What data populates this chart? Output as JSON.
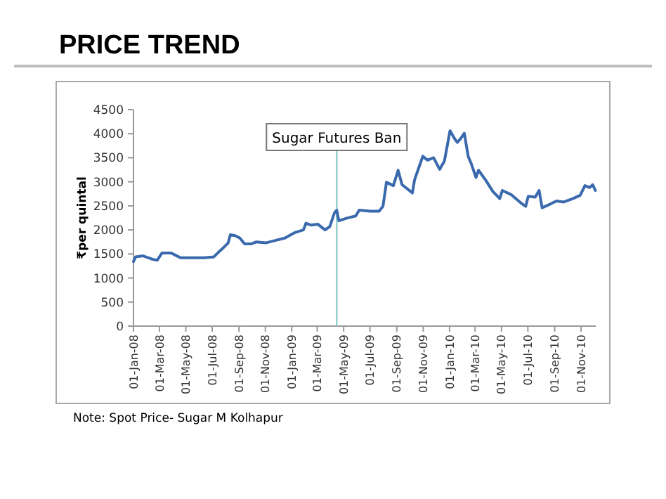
{
  "chart_data": {
    "type": "line",
    "title": "PRICE TREND",
    "ylabel": "₹per quintal",
    "annotations": [
      "Note:  Spot Price- Sugar M Kolhapur"
    ],
    "x": [
      "2008-01-01",
      "2008-01-06",
      "2008-01-23",
      "2008-02-14",
      "2008-02-25",
      "2008-03-07",
      "2008-03-28",
      "2008-04-08",
      "2008-04-19",
      "2008-05-11",
      "2008-06-13",
      "2008-07-05",
      "2008-07-16",
      "2008-07-27",
      "2008-08-07",
      "2008-08-12",
      "2008-08-23",
      "2008-09-03",
      "2008-09-14",
      "2008-09-30",
      "2008-10-11",
      "2008-11-02",
      "2008-11-24",
      "2008-12-16",
      "2009-01-07",
      "2009-01-28",
      "2009-02-03",
      "2009-02-14",
      "2009-03-02",
      "2009-03-19",
      "2009-03-30",
      "2009-04-10",
      "2009-04-15",
      "2009-04-20",
      "2009-05-07",
      "2009-05-29",
      "2009-06-06",
      "2009-07-01",
      "2009-07-22",
      "2009-07-31",
      "2009-08-08",
      "2009-08-24",
      "2009-09-04",
      "2009-09-13",
      "2009-10-07",
      "2009-10-12",
      "2009-10-31",
      "2009-11-11",
      "2009-11-25",
      "2009-12-09",
      "2009-12-20",
      "2010-01-02",
      "2010-01-13",
      "2010-01-19",
      "2010-01-26",
      "2010-02-04",
      "2010-02-13",
      "2010-02-20",
      "2010-03-03",
      "2010-03-09",
      "2010-03-25",
      "2010-04-11",
      "2010-04-27",
      "2010-05-03",
      "2010-05-24",
      "2010-06-15",
      "2010-06-26",
      "2010-07-02",
      "2010-07-18",
      "2010-07-27",
      "2010-08-03",
      "2010-08-20",
      "2010-09-05",
      "2010-09-22",
      "2010-10-13",
      "2010-10-30",
      "2010-11-10",
      "2010-11-21",
      "2010-11-28",
      "2010-12-04"
    ],
    "series": [
      {
        "color": "#3a6aad",
        "values": [
          1340,
          1440,
          1460,
          1390,
          1370,
          1520,
          1520,
          1470,
          1420,
          1420,
          1420,
          1440,
          1540,
          1630,
          1730,
          1900,
          1880,
          1830,
          1710,
          1710,
          1750,
          1730,
          1780,
          1830,
          1940,
          2000,
          2140,
          2100,
          2120,
          2000,
          2070,
          2360,
          2410,
          2190,
          2240,
          2290,
          2410,
          2390,
          2390,
          2490,
          2990,
          2920,
          3240,
          2940,
          2770,
          3040,
          3530,
          3450,
          3500,
          3260,
          3430,
          4060,
          3890,
          3820,
          3890,
          4010,
          3530,
          3380,
          3090,
          3240,
          3040,
          2800,
          2650,
          2820,
          2730,
          2560,
          2490,
          2700,
          2680,
          2820,
          2460,
          2530,
          2600,
          2580,
          2650,
          2720,
          2920,
          2880,
          2940,
          2820
        ]
      }
    ],
    "xlim": [
      "2008-01-01",
      "2010-12-05"
    ],
    "xticks": [
      {
        "value": "2008-01-01",
        "label": "01-Jan-08"
      },
      {
        "value": "2008-03-01",
        "label": "01-Mar-08"
      },
      {
        "value": "2008-05-01",
        "label": "01-May-08"
      },
      {
        "value": "2008-07-01",
        "label": "01-Jul-08"
      },
      {
        "value": "2008-09-01",
        "label": "01-Sep-08"
      },
      {
        "value": "2008-11-01",
        "label": "01-Nov-08"
      },
      {
        "value": "2009-01-01",
        "label": "01-Jan-09"
      },
      {
        "value": "2009-03-01",
        "label": "01-Mar-09"
      },
      {
        "value": "2009-05-01",
        "label": "01-May-09"
      },
      {
        "value": "2009-07-01",
        "label": "01-Jul-09"
      },
      {
        "value": "2009-09-01",
        "label": "01-Sep-09"
      },
      {
        "value": "2009-11-01",
        "label": "01-Nov-09"
      },
      {
        "value": "2010-01-01",
        "label": "01-Jan-10"
      },
      {
        "value": "2010-03-01",
        "label": "01-Mar-10"
      },
      {
        "value": "2010-05-01",
        "label": "01-May-10"
      },
      {
        "value": "2010-07-01",
        "label": "01-Jul-10"
      },
      {
        "value": "2010-09-01",
        "label": "01-Sep-10"
      },
      {
        "value": "2010-11-01",
        "label": "01-Nov-10"
      }
    ],
    "ylim": [
      0,
      4500
    ],
    "yticks": [
      0,
      500,
      1000,
      1500,
      2000,
      2500,
      3000,
      3500,
      4000,
      4500
    ],
    "ref_lines": [
      {
        "axis": "x",
        "value": "2009-04-15",
        "label": "Sugar Futures Ban",
        "color": "#8fd0cc"
      }
    ],
    "grid": false,
    "line_style": "solid"
  }
}
